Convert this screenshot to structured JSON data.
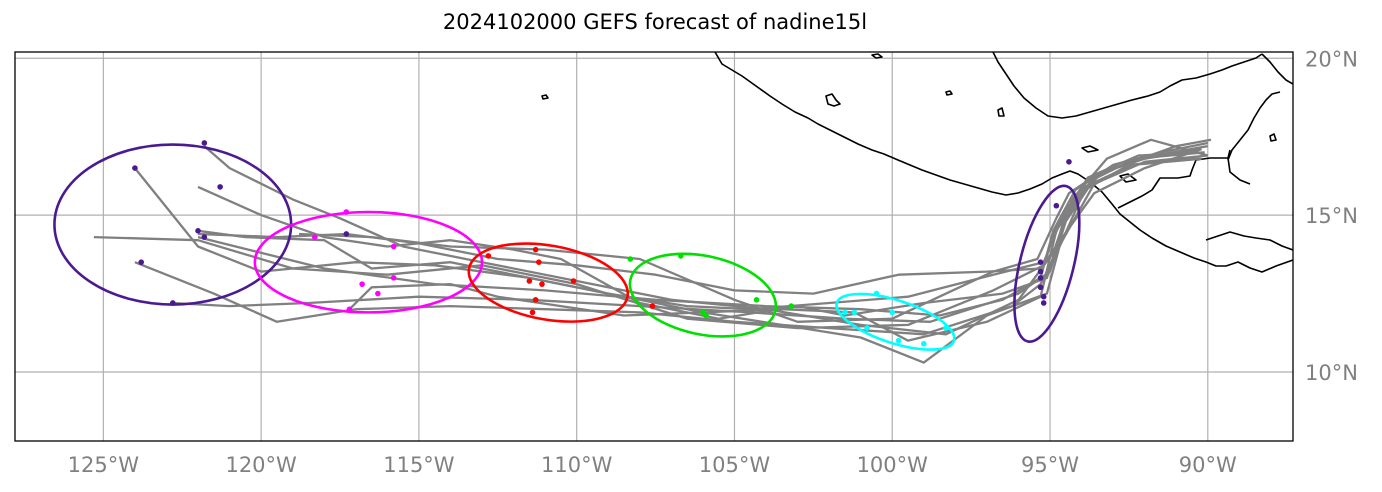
{
  "title": "2024102000 GEFS forecast of nadine15l",
  "map": {
    "lon_range": [
      -127.8,
      -87.3
    ],
    "lat_range": [
      7.8,
      20.2
    ],
    "lon_ticks": [
      {
        "value": -125,
        "label": "125°W"
      },
      {
        "value": -120,
        "label": "120°W"
      },
      {
        "value": -115,
        "label": "115°W"
      },
      {
        "value": -110,
        "label": "110°W"
      },
      {
        "value": -105,
        "label": "105°W"
      },
      {
        "value": -100,
        "label": "100°W"
      },
      {
        "value": -95,
        "label": "95°W"
      },
      {
        "value": -90,
        "label": "90°W"
      }
    ],
    "lat_ticks": [
      {
        "value": 20,
        "label": "20°N"
      },
      {
        "value": 15,
        "label": "15°N"
      },
      {
        "value": 10,
        "label": "10°N"
      }
    ],
    "grid": true,
    "colors": {
      "track": "#808080",
      "coast": "#000000",
      "grid": "#b0b0b0",
      "tick_label": "#808080"
    }
  },
  "tracks": [
    [
      [
        -90.0,
        17.3
      ],
      [
        -91.5,
        17.0
      ],
      [
        -93.0,
        16.6
      ],
      [
        -94.2,
        15.8
      ],
      [
        -94.9,
        14.5
      ],
      [
        -95.3,
        13.0
      ],
      [
        -96.5,
        12.3
      ],
      [
        -98.5,
        11.8
      ],
      [
        -101.0,
        12.0
      ],
      [
        -104.0,
        12.1
      ],
      [
        -107.5,
        12.3
      ],
      [
        -111.0,
        12.6
      ],
      [
        -114.5,
        12.8
      ],
      [
        -118.0,
        13.3
      ],
      [
        -122.0,
        14.3
      ]
    ],
    [
      [
        -90.2,
        17.1
      ],
      [
        -92.0,
        16.8
      ],
      [
        -93.5,
        16.3
      ],
      [
        -94.5,
        14.8
      ],
      [
        -95.0,
        13.2
      ],
      [
        -96.0,
        12.5
      ],
      [
        -98.8,
        11.6
      ],
      [
        -101.5,
        11.7
      ],
      [
        -104.5,
        11.9
      ],
      [
        -108.0,
        12.1
      ],
      [
        -111.5,
        12.3
      ],
      [
        -115.0,
        12.4
      ],
      [
        -118.5,
        12.2
      ],
      [
        -121.0,
        12.1
      ],
      [
        -122.8,
        12.2
      ]
    ],
    [
      [
        -90.0,
        16.9
      ],
      [
        -92.0,
        16.7
      ],
      [
        -93.6,
        16.0
      ],
      [
        -94.6,
        14.2
      ],
      [
        -95.3,
        12.8
      ],
      [
        -96.2,
        12.1
      ],
      [
        -99.0,
        11.2
      ],
      [
        -102.0,
        11.4
      ],
      [
        -105.0,
        11.6
      ],
      [
        -108.0,
        11.9
      ],
      [
        -111.0,
        12.0
      ],
      [
        -114.0,
        12.1
      ],
      [
        -117.0,
        12.0
      ],
      [
        -119.5,
        11.6
      ],
      [
        -121.5,
        12.5
      ],
      [
        -124.0,
        13.5
      ]
    ],
    [
      [
        -90.1,
        17.0
      ],
      [
        -92.2,
        16.9
      ],
      [
        -93.8,
        16.2
      ],
      [
        -94.8,
        14.6
      ],
      [
        -95.2,
        13.4
      ],
      [
        -96.8,
        12.6
      ],
      [
        -99.5,
        11.5
      ],
      [
        -103.0,
        11.4
      ],
      [
        -106.5,
        11.7
      ],
      [
        -110.0,
        12.8
      ],
      [
        -113.0,
        13.4
      ],
      [
        -116.0,
        13.1
      ],
      [
        -119.0,
        13.3
      ],
      [
        -122.0,
        14.2
      ],
      [
        -125.3,
        14.3
      ]
    ],
    [
      [
        -90.3,
        16.8
      ],
      [
        -92.5,
        16.6
      ],
      [
        -93.9,
        15.8
      ],
      [
        -94.7,
        14.0
      ],
      [
        -95.1,
        12.5
      ],
      [
        -97.0,
        11.8
      ],
      [
        -99.0,
        10.3
      ],
      [
        -101.0,
        11.1
      ],
      [
        -103.5,
        11.5
      ],
      [
        -106.0,
        11.9
      ],
      [
        -108.5,
        12.4
      ],
      [
        -111.5,
        13.0
      ],
      [
        -114.5,
        13.4
      ],
      [
        -117.0,
        13.5
      ],
      [
        -120.0,
        13.2
      ],
      [
        -122.0,
        14.0
      ],
      [
        -124.0,
        16.5
      ]
    ],
    [
      [
        -90.0,
        16.9
      ],
      [
        -91.8,
        17.4
      ],
      [
        -93.2,
        16.8
      ],
      [
        -94.3,
        15.5
      ],
      [
        -94.9,
        13.8
      ],
      [
        -96.0,
        12.3
      ],
      [
        -98.3,
        11.2
      ],
      [
        -101.0,
        11.5
      ],
      [
        -104.0,
        12.0
      ],
      [
        -107.0,
        12.3
      ],
      [
        -110.0,
        12.9
      ],
      [
        -113.0,
        13.5
      ],
      [
        -115.5,
        14.0
      ],
      [
        -117.5,
        14.9
      ],
      [
        -119.0,
        15.5
      ],
      [
        -121.0,
        16.5
      ],
      [
        -121.8,
        17.2
      ]
    ],
    [
      [
        -90.2,
        17.1
      ],
      [
        -92.0,
        16.5
      ],
      [
        -93.6,
        15.7
      ],
      [
        -94.6,
        14.3
      ],
      [
        -95.3,
        13.3
      ],
      [
        -97.0,
        13.2
      ],
      [
        -99.8,
        13.1
      ],
      [
        -102.5,
        12.5
      ],
      [
        -105.0,
        12.6
      ],
      [
        -107.5,
        13.1
      ],
      [
        -110.0,
        13.4
      ],
      [
        -112.5,
        13.6
      ],
      [
        -115.0,
        14.1
      ],
      [
        -117.3,
        14.4
      ],
      [
        -119.5,
        14.3
      ],
      [
        -122.0,
        14.4
      ]
    ],
    [
      [
        -90.0,
        17.2
      ],
      [
        -91.7,
        16.9
      ],
      [
        -93.3,
        16.4
      ],
      [
        -94.5,
        15.2
      ],
      [
        -95.2,
        13.5
      ],
      [
        -96.8,
        13.1
      ],
      [
        -99.5,
        12.4
      ],
      [
        -102.0,
        12.2
      ],
      [
        -104.5,
        12.0
      ],
      [
        -106.5,
        12.1
      ],
      [
        -109.0,
        12.5
      ],
      [
        -111.5,
        13.0
      ],
      [
        -114.0,
        13.5
      ],
      [
        -116.5,
        13.3
      ],
      [
        -118.0,
        14.2
      ],
      [
        -120.5,
        14.3
      ],
      [
        -122.0,
        14.5
      ]
    ],
    [
      [
        -90.1,
        17.0
      ],
      [
        -92.3,
        16.8
      ],
      [
        -93.7,
        16.1
      ],
      [
        -94.6,
        14.7
      ],
      [
        -95.1,
        13.0
      ],
      [
        -96.5,
        12.5
      ],
      [
        -99.0,
        12.2
      ],
      [
        -101.5,
        11.8
      ],
      [
        -103.0,
        12.1
      ],
      [
        -105.5,
        11.7
      ],
      [
        -108.0,
        12.2
      ],
      [
        -110.5,
        13.6
      ],
      [
        -112.0,
        13.9
      ],
      [
        -114.0,
        14.2
      ],
      [
        -116.0,
        14.0
      ],
      [
        -118.0,
        14.3
      ],
      [
        -120.0,
        15.0
      ],
      [
        -122.0,
        15.9
      ]
    ],
    [
      [
        -90.2,
        16.8
      ],
      [
        -92.4,
        16.6
      ],
      [
        -93.9,
        15.9
      ],
      [
        -94.8,
        14.5
      ],
      [
        -95.3,
        12.4
      ],
      [
        -97.0,
        11.6
      ],
      [
        -99.5,
        11.0
      ],
      [
        -101.2,
        11.9
      ],
      [
        -103.5,
        12.0
      ],
      [
        -106.0,
        11.9
      ],
      [
        -108.5,
        11.8
      ],
      [
        -110.5,
        12.1
      ],
      [
        -112.5,
        12.4
      ],
      [
        -114.0,
        12.8
      ],
      [
        -116.5,
        12.7
      ],
      [
        -117.2,
        12.0
      ]
    ],
    [
      [
        -89.9,
        17.4
      ],
      [
        -91.0,
        17.2
      ],
      [
        -93.5,
        16.3
      ],
      [
        -94.4,
        15.7
      ],
      [
        -94.8,
        14.9
      ],
      [
        -95.4,
        13.6
      ],
      [
        -96.8,
        13.2
      ],
      [
        -100.0,
        11.7
      ],
      [
        -103.0,
        11.6
      ],
      [
        -105.0,
        12.3
      ],
      [
        -108.0,
        13.6
      ],
      [
        -111.0,
        13.9
      ],
      [
        -114.0,
        14.0
      ],
      [
        -116.5,
        14.3
      ],
      [
        -118.8,
        14.4
      ]
    ]
  ],
  "clusters": [
    {
      "color": "#4b1a91",
      "ellipse": {
        "cx": -122.8,
        "cy": 14.7,
        "rx": 3.75,
        "ry": 2.55,
        "rot": 0
      },
      "points": [
        [
          -121.8,
          17.3
        ],
        [
          -124.0,
          16.5
        ],
        [
          -121.3,
          15.9
        ],
        [
          -122.0,
          14.5
        ],
        [
          -121.8,
          14.3
        ],
        [
          -123.8,
          13.5
        ],
        [
          -122.8,
          12.2
        ]
      ]
    },
    {
      "color": "#ff00ff",
      "ellipse": {
        "cx": -116.6,
        "cy": 13.5,
        "rx": 3.6,
        "ry": 1.6,
        "rot": 0
      },
      "points": [
        [
          -117.3,
          15.1
        ],
        [
          -118.3,
          14.3
        ],
        [
          -115.8,
          14.0
        ],
        [
          -115.8,
          13.0
        ],
        [
          -116.8,
          12.8
        ],
        [
          -116.3,
          12.5
        ],
        [
          -117.2,
          12.0
        ]
      ],
      "extra_dark": [
        [
          -117.3,
          14.4
        ]
      ]
    },
    {
      "color": "#ff0000",
      "ellipse": {
        "cx": -110.9,
        "cy": 12.85,
        "rx": 2.55,
        "ry": 1.18,
        "rot": 10
      },
      "points": [
        [
          -111.3,
          13.9
        ],
        [
          -112.8,
          13.7
        ],
        [
          -111.2,
          13.5
        ],
        [
          -111.5,
          12.9
        ],
        [
          -111.1,
          12.8
        ],
        [
          -110.1,
          12.9
        ],
        [
          -111.3,
          12.3
        ],
        [
          -111.4,
          11.9
        ],
        [
          -107.6,
          12.1
        ]
      ]
    },
    {
      "color": "#00e000",
      "ellipse": {
        "cx": -106.0,
        "cy": 12.45,
        "rx": 2.35,
        "ry": 1.25,
        "rot": 12
      },
      "points": [
        [
          -108.3,
          13.6
        ],
        [
          -106.7,
          13.7
        ],
        [
          -104.3,
          12.3
        ],
        [
          -103.2,
          12.1
        ],
        [
          -106.0,
          11.9
        ],
        [
          -105.9,
          11.8
        ]
      ]
    },
    {
      "color": "#00ffff",
      "ellipse": {
        "cx": -99.9,
        "cy": 11.6,
        "rx": 1.95,
        "ry": 0.68,
        "rot": 18
      },
      "points": [
        [
          -100.5,
          12.5
        ],
        [
          -101.2,
          11.9
        ],
        [
          -101.5,
          11.9
        ],
        [
          -100.0,
          11.9
        ],
        [
          -100.8,
          11.4
        ],
        [
          -98.3,
          11.4
        ],
        [
          -99.8,
          11.0
        ],
        [
          -99.0,
          10.9
        ]
      ]
    },
    {
      "color": "#4b1a91",
      "ellipse": {
        "cx": -95.1,
        "cy": 13.45,
        "rx": 0.85,
        "ry": 2.55,
        "rot": 14
      },
      "points": [
        [
          -94.4,
          16.7
        ],
        [
          -94.8,
          15.3
        ],
        [
          -95.3,
          13.5
        ],
        [
          -95.3,
          13.2
        ],
        [
          -95.3,
          13.0
        ],
        [
          -95.3,
          12.7
        ],
        [
          -95.2,
          12.4
        ],
        [
          -95.2,
          12.2
        ]
      ]
    }
  ]
}
